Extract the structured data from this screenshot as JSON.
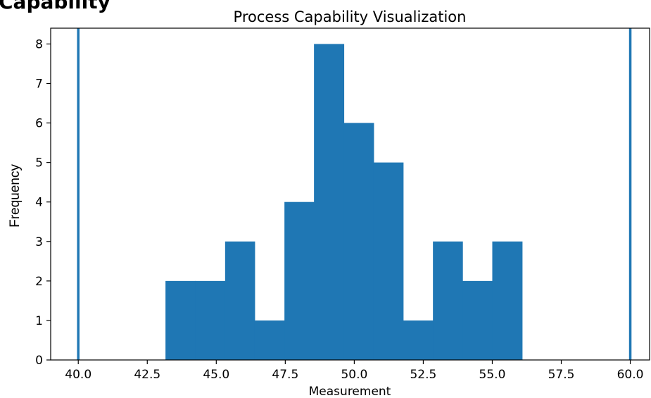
{
  "page_heading": "Capability",
  "chart_data": {
    "type": "bar",
    "title": "Process Capability Visualization",
    "xlabel": "Measurement",
    "ylabel": "Frequency",
    "xlim": [
      39,
      60.7
    ],
    "ylim": [
      0,
      8.4
    ],
    "x_ticks": [
      40.0,
      42.5,
      45.0,
      47.5,
      50.0,
      52.5,
      55.0,
      57.5,
      60.0
    ],
    "x_tick_labels": [
      "40.0",
      "42.5",
      "45.0",
      "47.5",
      "50.0",
      "52.5",
      "55.0",
      "57.5",
      "60.0"
    ],
    "y_ticks": [
      0,
      1,
      2,
      3,
      4,
      5,
      6,
      7,
      8
    ],
    "y_tick_labels": [
      "0",
      "1",
      "2",
      "3",
      "4",
      "5",
      "6",
      "7",
      "8"
    ],
    "bin_edges": [
      43.16,
      44.24,
      45.32,
      46.39,
      47.47,
      48.54,
      49.62,
      50.7,
      51.77,
      52.85,
      53.92,
      55.0,
      56.08
    ],
    "values": [
      2,
      2,
      3,
      1,
      4,
      8,
      6,
      5,
      1,
      3,
      2,
      3
    ],
    "spec_limits": [
      40.0,
      60.0
    ],
    "bar_color": "#1f77b4",
    "line_color": "#1f77b4",
    "grid": false
  }
}
